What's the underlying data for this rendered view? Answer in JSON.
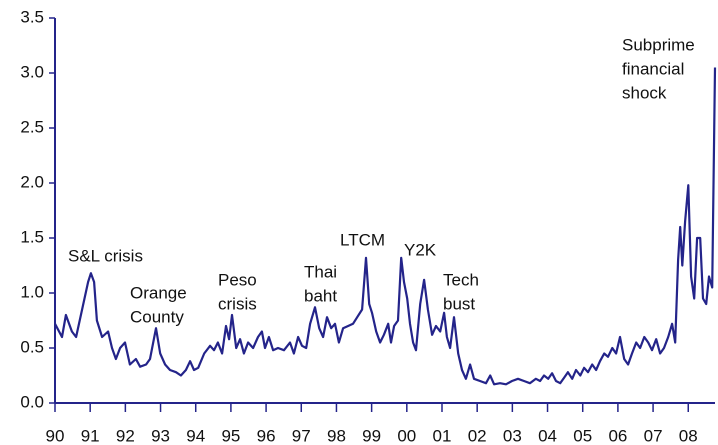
{
  "chart_data": {
    "type": "line",
    "x": [
      1990.0,
      1990.2,
      1990.31,
      1990.48,
      1990.6,
      1990.77,
      1990.94,
      1991.02,
      1991.11,
      1991.19,
      1991.34,
      1991.51,
      1991.62,
      1991.73,
      1991.85,
      1991.99,
      1992.13,
      1992.3,
      1992.42,
      1992.59,
      1992.7,
      1992.87,
      1992.99,
      1993.13,
      1993.27,
      1993.44,
      1993.58,
      1993.72,
      1993.84,
      1993.95,
      1994.07,
      1994.24,
      1994.41,
      1994.52,
      1994.63,
      1994.75,
      1994.86,
      1994.95,
      1995.03,
      1995.15,
      1995.26,
      1995.37,
      1995.49,
      1995.63,
      1995.77,
      1995.88,
      1995.97,
      1996.08,
      1996.2,
      1996.34,
      1996.51,
      1996.68,
      1996.79,
      1996.91,
      1997.02,
      1997.14,
      1997.25,
      1997.39,
      1997.51,
      1997.62,
      1997.73,
      1997.85,
      1997.96,
      1998.07,
      1998.19,
      1998.33,
      1998.47,
      1998.59,
      1998.73,
      1998.84,
      1998.93,
      1999.01,
      1999.13,
      1999.24,
      1999.35,
      1999.47,
      1999.55,
      1999.64,
      1999.75,
      1999.84,
      1999.92,
      2000.01,
      2000.09,
      2000.18,
      2000.26,
      2000.38,
      2000.49,
      2000.6,
      2000.72,
      2000.83,
      2000.95,
      2001.06,
      2001.14,
      2001.23,
      2001.34,
      2001.46,
      2001.57,
      2001.68,
      2001.8,
      2001.91,
      2002.08,
      2002.25,
      2002.37,
      2002.48,
      2002.65,
      2002.82,
      2002.99,
      2003.16,
      2003.33,
      2003.5,
      2003.67,
      2003.79,
      2003.9,
      2004.02,
      2004.13,
      2004.24,
      2004.36,
      2004.47,
      2004.58,
      2004.7,
      2004.81,
      2004.93,
      2005.04,
      2005.15,
      2005.27,
      2005.38,
      2005.49,
      2005.61,
      2005.72,
      2005.84,
      2005.95,
      2006.06,
      2006.18,
      2006.29,
      2006.4,
      2006.52,
      2006.63,
      2006.75,
      2006.86,
      2006.97,
      2007.09,
      2007.2,
      2007.31,
      2007.43,
      2007.54,
      2007.63,
      2007.71,
      2007.77,
      2007.83,
      2007.91,
      2008.0,
      2008.08,
      2008.17,
      2008.25,
      2008.34,
      2008.42,
      2008.51,
      2008.59,
      2008.68,
      2008.76
    ],
    "series": [
      {
        "color": "#24248a",
        "values": [
          0.72,
          0.6,
          0.8,
          0.65,
          0.6,
          0.85,
          1.1,
          1.18,
          1.1,
          0.75,
          0.6,
          0.65,
          0.5,
          0.4,
          0.5,
          0.55,
          0.35,
          0.4,
          0.33,
          0.35,
          0.4,
          0.68,
          0.45,
          0.35,
          0.3,
          0.28,
          0.25,
          0.3,
          0.38,
          0.3,
          0.32,
          0.45,
          0.52,
          0.48,
          0.55,
          0.45,
          0.7,
          0.58,
          0.8,
          0.5,
          0.58,
          0.45,
          0.55,
          0.5,
          0.6,
          0.65,
          0.5,
          0.6,
          0.48,
          0.5,
          0.48,
          0.55,
          0.45,
          0.6,
          0.52,
          0.5,
          0.72,
          0.87,
          0.68,
          0.6,
          0.78,
          0.68,
          0.72,
          0.55,
          0.68,
          0.7,
          0.72,
          0.78,
          0.85,
          1.32,
          0.9,
          0.82,
          0.65,
          0.55,
          0.62,
          0.72,
          0.55,
          0.7,
          0.75,
          1.32,
          1.1,
          0.95,
          0.72,
          0.55,
          0.48,
          0.9,
          1.12,
          0.85,
          0.62,
          0.7,
          0.65,
          0.82,
          0.6,
          0.5,
          0.78,
          0.45,
          0.3,
          0.22,
          0.35,
          0.22,
          0.2,
          0.18,
          0.25,
          0.17,
          0.18,
          0.17,
          0.2,
          0.22,
          0.2,
          0.18,
          0.22,
          0.2,
          0.25,
          0.22,
          0.27,
          0.2,
          0.18,
          0.23,
          0.28,
          0.22,
          0.3,
          0.25,
          0.32,
          0.28,
          0.35,
          0.3,
          0.38,
          0.45,
          0.42,
          0.5,
          0.45,
          0.6,
          0.4,
          0.35,
          0.45,
          0.55,
          0.5,
          0.6,
          0.55,
          0.48,
          0.58,
          0.45,
          0.5,
          0.6,
          0.72,
          0.55,
          1.3,
          1.6,
          1.25,
          1.65,
          1.98,
          1.15,
          0.95,
          1.5,
          1.5,
          0.95,
          0.9,
          1.15,
          1.05,
          3.05
        ]
      }
    ],
    "xlim": [
      1990,
      2008.76
    ],
    "xticks": [
      {
        "value": 1990,
        "label": "90"
      },
      {
        "value": 1991,
        "label": "91"
      },
      {
        "value": 1992,
        "label": "92"
      },
      {
        "value": 1993,
        "label": "93"
      },
      {
        "value": 1994,
        "label": "94"
      },
      {
        "value": 1995,
        "label": "95"
      },
      {
        "value": 1996,
        "label": "96"
      },
      {
        "value": 1997,
        "label": "97"
      },
      {
        "value": 1998,
        "label": "98"
      },
      {
        "value": 1999,
        "label": "99"
      },
      {
        "value": 2000,
        "label": "00"
      },
      {
        "value": 2001,
        "label": "01"
      },
      {
        "value": 2002,
        "label": "02"
      },
      {
        "value": 2003,
        "label": "03"
      },
      {
        "value": 2004,
        "label": "04"
      },
      {
        "value": 2005,
        "label": "05"
      },
      {
        "value": 2006,
        "label": "06"
      },
      {
        "value": 2007,
        "label": "07"
      },
      {
        "value": 2008,
        "label": "08"
      }
    ],
    "ylim": [
      0,
      3.5
    ],
    "yticks": [
      {
        "value": 0,
        "label": "0.0"
      },
      0.5,
      {
        "value": 1,
        "label": "1.0"
      },
      1.5,
      {
        "value": 2,
        "label": "2.0"
      },
      2.5,
      {
        "value": 3,
        "label": "3.0"
      },
      3.5
    ],
    "annotations": [
      [
        "S&L crisis"
      ],
      [
        "Orange",
        "County"
      ],
      [
        "Peso",
        "crisis"
      ],
      [
        "Thai",
        "baht"
      ],
      [
        "LTCM"
      ],
      [
        "Y2K"
      ],
      [
        "Tech",
        "bust"
      ],
      [
        "Subprime",
        "financial",
        "shock"
      ]
    ]
  }
}
